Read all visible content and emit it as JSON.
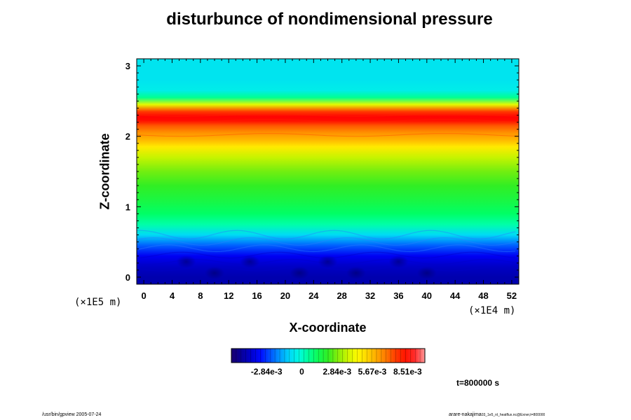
{
  "chart_data": {
    "type": "heatmap",
    "title": "disturbunce of nondimensional pressure",
    "xlabel": "X-coordinate",
    "ylabel": "Z-coordinate",
    "x_unit": "(×1E4 m)",
    "y_unit": "(×1E5 m)",
    "xlim": [
      -1,
      53
    ],
    "ylim": [
      -0.1,
      3.1
    ],
    "x_ticks": [
      0,
      4,
      8,
      12,
      16,
      20,
      24,
      28,
      32,
      36,
      40,
      44,
      48,
      52
    ],
    "y_ticks": [
      0,
      1,
      2,
      3
    ],
    "colorbar": {
      "tick_labels": [
        "-2.84e-3",
        "0",
        "2.84e-3",
        "5.67e-3",
        "8.51e-3"
      ],
      "tick_values": [
        -0.00284,
        0,
        0.00284,
        0.00567,
        0.00851
      ],
      "range": [
        -0.00567,
        0.0099
      ],
      "levels": 40,
      "colormap": [
        "#1a0070",
        "#0000aa",
        "#0000ff",
        "#0066ff",
        "#00ccff",
        "#00ffdd",
        "#00ff66",
        "#33ee22",
        "#aaee00",
        "#ffff00",
        "#ffcc00",
        "#ff8800",
        "#ff3300",
        "#ff0000",
        "#ff9999"
      ]
    },
    "z_profile": {
      "z": [
        0.0,
        0.15,
        0.3,
        0.45,
        0.6,
        0.75,
        0.9,
        1.1,
        1.3,
        1.5,
        1.7,
        1.85,
        1.95,
        2.05,
        2.15,
        2.22,
        2.28,
        2.35,
        2.45,
        2.55,
        2.65,
        2.8,
        3.0
      ],
      "value": [
        -0.0045,
        -0.0042,
        -0.0036,
        -0.0024,
        -0.0009,
        0.0004,
        0.001,
        0.0016,
        0.0021,
        0.0027,
        0.0036,
        0.0048,
        0.0058,
        0.0064,
        0.0072,
        0.0085,
        0.0088,
        0.0076,
        0.004,
        0.0006,
        -0.0005,
        -0.0007,
        -0.0007
      ]
    },
    "annotation": "t=800000 s"
  },
  "footer": {
    "left": "/usr/bin/gpview 2005-07-24",
    "right_main": "arare-nakajima",
    "right_sub": "03_1e5_nl_heatflux.nc@Exner,t=800000"
  }
}
